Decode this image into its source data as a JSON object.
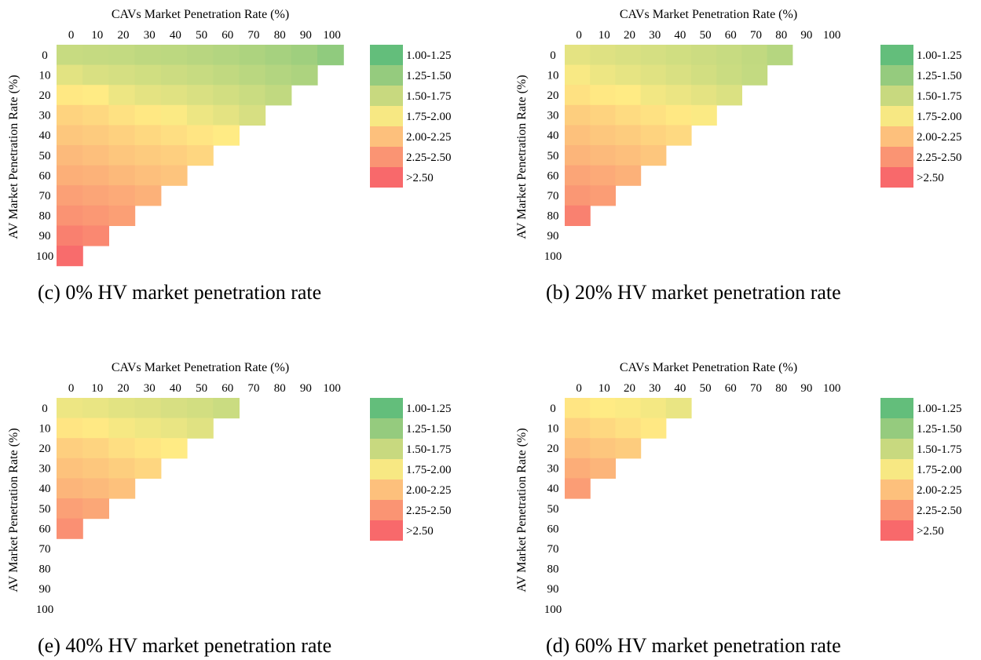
{
  "legend": {
    "bins": [
      {
        "label": "1.00-1.25",
        "color": "#63BE7B"
      },
      {
        "label": "1.25-1.50",
        "color": "#95CB7E"
      },
      {
        "label": "1.50-1.75",
        "color": "#C8D97F"
      },
      {
        "label": "1.75-2.00",
        "color": "#F7E883"
      },
      {
        "label": "2.00-2.25",
        "color": "#FDC07C"
      },
      {
        "label": "2.25-2.50",
        "color": "#FA9473"
      },
      {
        "label": ">2.50",
        "color": "#F8696B"
      }
    ]
  },
  "color_scale": {
    "min": 1.1,
    "max": 2.6,
    "stops": [
      "#63BE7B",
      "#FFEB84",
      "#F8696B"
    ],
    "mid": 1.8
  },
  "chart_data": [
    {
      "type": "heatmap",
      "caption": "(c)  0% HV market penetration rate",
      "xlabel": "CAVs Market Penetration Rate (%)",
      "ylabel": "AV Market Penetration Rate (%)",
      "x_categories": [
        "0",
        "10",
        "20",
        "30",
        "40",
        "50",
        "60",
        "70",
        "80",
        "90",
        "100"
      ],
      "y_categories": [
        "0",
        "10",
        "20",
        "30",
        "40",
        "50",
        "60",
        "70",
        "80",
        "90",
        "100"
      ],
      "values": [
        [
          1.55,
          1.54,
          1.53,
          1.51,
          1.5,
          1.48,
          1.46,
          1.43,
          1.4,
          1.37,
          1.3
        ],
        [
          1.67,
          1.63,
          1.61,
          1.59,
          1.57,
          1.55,
          1.52,
          1.49,
          1.46,
          1.43
        ],
        [
          1.82,
          1.8,
          1.72,
          1.68,
          1.66,
          1.63,
          1.6,
          1.56,
          1.52
        ],
        [
          1.95,
          1.92,
          1.86,
          1.82,
          1.78,
          1.72,
          1.68,
          1.62
        ],
        [
          2.02,
          2.0,
          1.96,
          1.92,
          1.88,
          1.84,
          1.8
        ],
        [
          2.1,
          2.07,
          2.03,
          2.0,
          1.97,
          1.93
        ],
        [
          2.17,
          2.15,
          2.11,
          2.07,
          2.04
        ],
        [
          2.26,
          2.23,
          2.2,
          2.16
        ],
        [
          2.34,
          2.31,
          2.27
        ],
        [
          2.46,
          2.41
        ],
        [
          2.58
        ]
      ]
    },
    {
      "type": "heatmap",
      "caption": "(b) 20% HV market penetration rate",
      "xlabel": "CAVs Market Penetration Rate (%)",
      "ylabel": "AV Market Penetration Rate (%)",
      "x_categories": [
        "0",
        "10",
        "20",
        "30",
        "40",
        "50",
        "60",
        "70",
        "80",
        "90",
        "100"
      ],
      "y_categories": [
        "0",
        "10",
        "20",
        "30",
        "40",
        "50",
        "60",
        "70",
        "80",
        "90",
        "100"
      ],
      "values": [
        [
          1.68,
          1.65,
          1.63,
          1.61,
          1.59,
          1.57,
          1.55,
          1.52,
          1.47
        ],
        [
          1.77,
          1.72,
          1.69,
          1.66,
          1.63,
          1.6,
          1.56,
          1.53
        ],
        [
          1.86,
          1.82,
          1.8,
          1.74,
          1.71,
          1.68,
          1.64
        ],
        [
          1.98,
          1.95,
          1.9,
          1.86,
          1.82,
          1.78
        ],
        [
          2.06,
          2.02,
          1.99,
          1.95,
          1.91
        ],
        [
          2.13,
          2.1,
          2.07,
          2.03
        ],
        [
          2.23,
          2.2,
          2.16
        ],
        [
          2.32,
          2.28
        ],
        [
          2.45
        ]
      ]
    },
    {
      "type": "heatmap",
      "caption": "(e)  40% HV market penetration rate",
      "xlabel": "CAVs Market Penetration Rate (%)",
      "ylabel": "AV Market Penetration Rate (%)",
      "x_categories": [
        "0",
        "10",
        "20",
        "30",
        "40",
        "50",
        "60",
        "70",
        "80",
        "90",
        "100"
      ],
      "y_categories": [
        "0",
        "10",
        "20",
        "30",
        "40",
        "50",
        "60",
        "70",
        "80",
        "90",
        "100"
      ],
      "values": [
        [
          1.72,
          1.7,
          1.67,
          1.65,
          1.62,
          1.6,
          1.56
        ],
        [
          1.84,
          1.81,
          1.76,
          1.73,
          1.7,
          1.66
        ],
        [
          1.97,
          1.94,
          1.88,
          1.84,
          1.8
        ],
        [
          2.05,
          2.02,
          1.98,
          1.93
        ],
        [
          2.13,
          2.1,
          2.06
        ],
        [
          2.26,
          2.22
        ],
        [
          2.36
        ]
      ]
    },
    {
      "type": "heatmap",
      "caption": "(d) 60% HV market penetration rate",
      "xlabel": "CAVs Market Penetration Rate (%)",
      "ylabel": "AV Market Penetration Rate (%)",
      "x_categories": [
        "0",
        "10",
        "20",
        "30",
        "40",
        "50",
        "60",
        "70",
        "80",
        "90",
        "100"
      ],
      "y_categories": [
        "0",
        "10",
        "20",
        "30",
        "40",
        "50",
        "60",
        "70",
        "80",
        "90",
        "100"
      ],
      "values": [
        [
          1.84,
          1.8,
          1.78,
          1.75,
          1.7
        ],
        [
          1.96,
          1.92,
          1.87,
          1.82
        ],
        [
          2.07,
          2.03,
          1.99
        ],
        [
          2.18,
          2.13
        ],
        [
          2.28
        ]
      ]
    }
  ]
}
